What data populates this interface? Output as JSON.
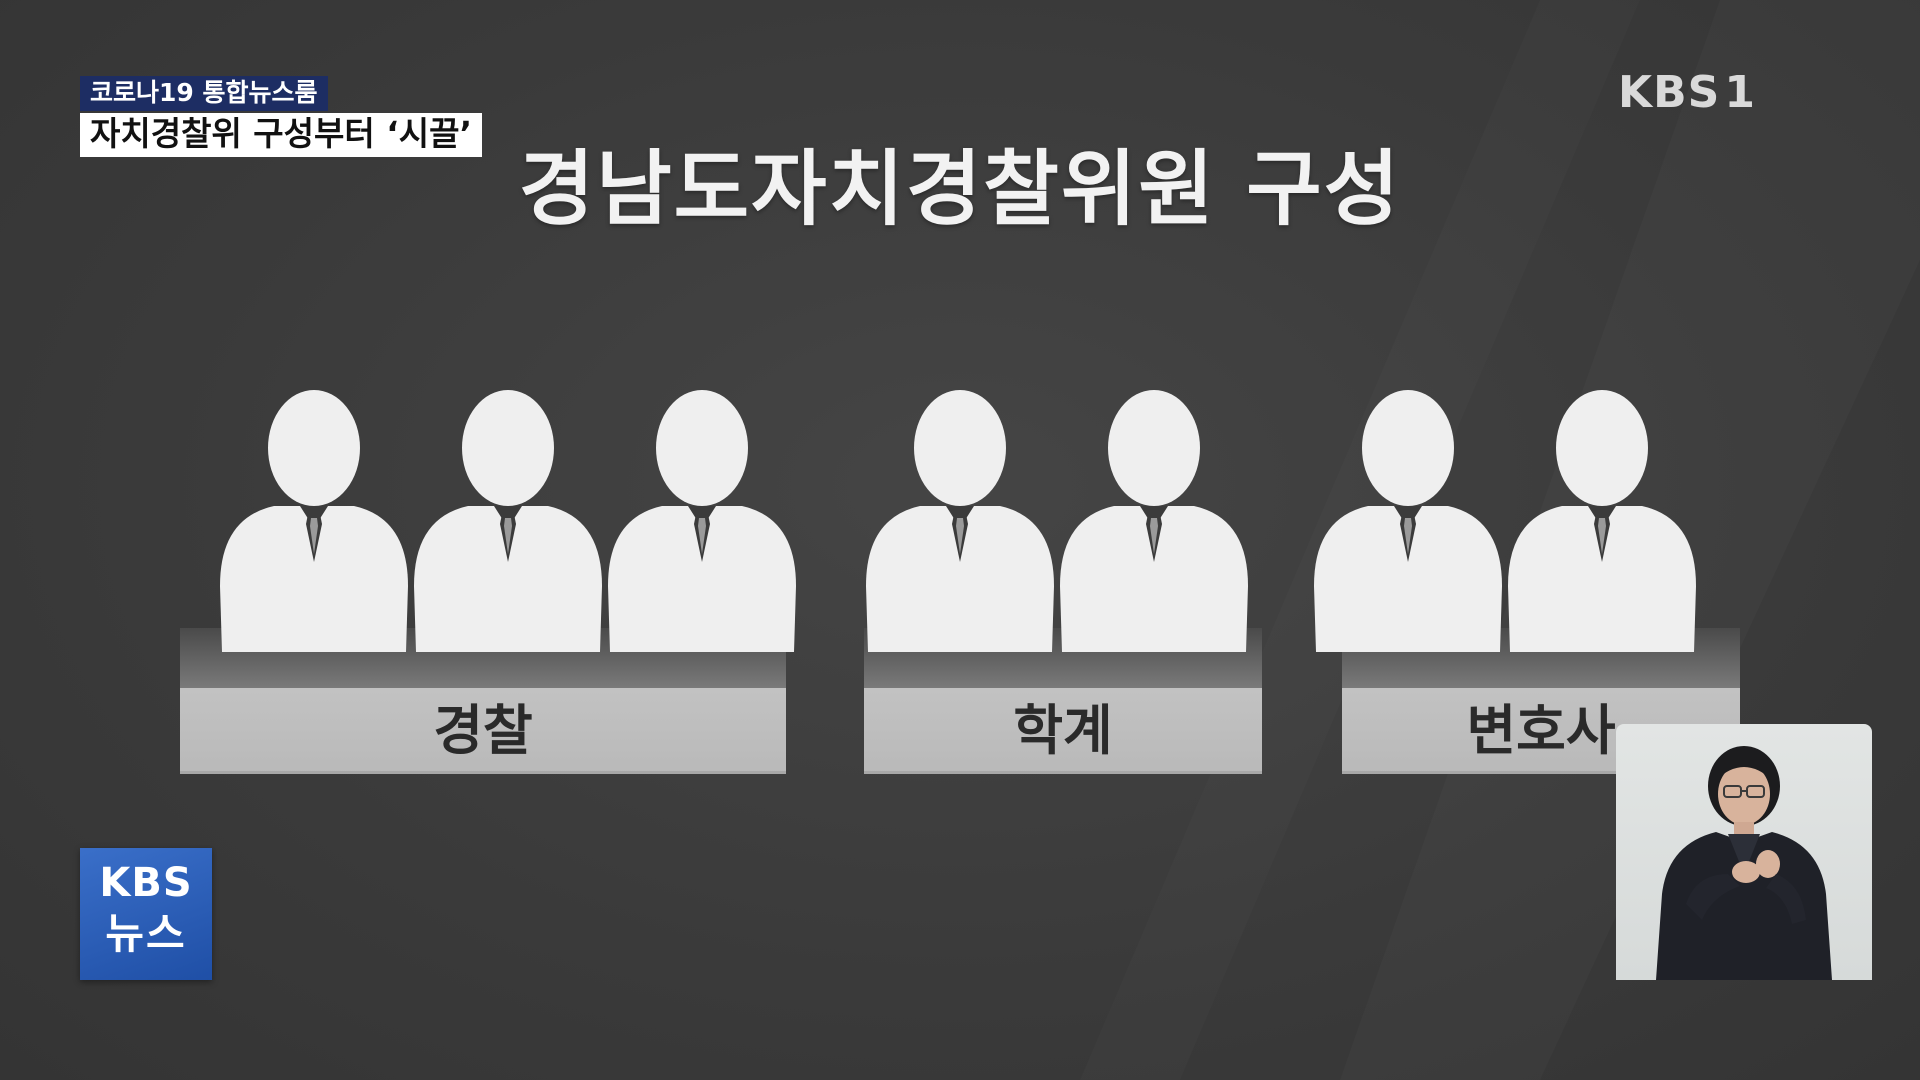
{
  "caption": {
    "program": "코로나19 통합뉴스룸",
    "headline": "자치경찰위 구성부터 ‘시끌’"
  },
  "channel": {
    "name": "KBS",
    "number": "1"
  },
  "title": "경남도자치경찰위원 구성",
  "groups": [
    {
      "label": "경찰",
      "members": 3
    },
    {
      "label": "학계",
      "members": 2
    },
    {
      "label": "변호사",
      "members": 2
    }
  ],
  "news_logo": {
    "line1": "KBS",
    "line2": "뉴스"
  },
  "colors": {
    "background": "#3b3b3b",
    "figure": "#efefef",
    "podium": "#c0c0c0",
    "caption_program_bg": "#1d2d63",
    "news_logo_bg": "#2d5fba"
  }
}
